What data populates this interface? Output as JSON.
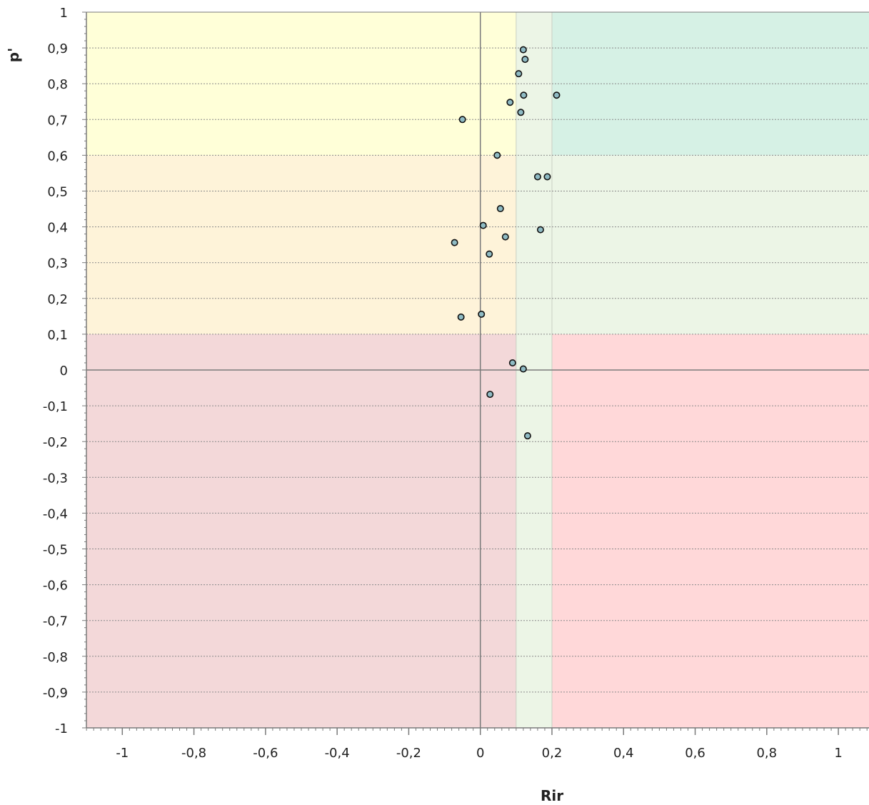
{
  "chart_data": {
    "type": "scatter",
    "title": "",
    "xlabel": "Rir",
    "ylabel": "p'",
    "xlim": [
      -1.1,
      1.1
    ],
    "ylim": [
      -1,
      1
    ],
    "x_ticks": [
      {
        "value": -1,
        "label": "-1"
      },
      {
        "value": -0.8,
        "label": "-0,8"
      },
      {
        "value": -0.6,
        "label": "-0,6"
      },
      {
        "value": -0.4,
        "label": "-0,4"
      },
      {
        "value": -0.2,
        "label": "-0,2"
      },
      {
        "value": 0,
        "label": "0"
      },
      {
        "value": 0.2,
        "label": "0,2"
      },
      {
        "value": 0.4,
        "label": "0,4"
      },
      {
        "value": 0.6,
        "label": "0,6"
      },
      {
        "value": 0.8,
        "label": "0,8"
      },
      {
        "value": 1,
        "label": "1"
      }
    ],
    "y_ticks": [
      {
        "value": 1,
        "label": "1"
      },
      {
        "value": 0.9,
        "label": "0,9"
      },
      {
        "value": 0.8,
        "label": "0,8"
      },
      {
        "value": 0.7,
        "label": "0,7"
      },
      {
        "value": 0.6,
        "label": "0,6"
      },
      {
        "value": 0.5,
        "label": "0,5"
      },
      {
        "value": 0.4,
        "label": "0,4"
      },
      {
        "value": 0.3,
        "label": "0,3"
      },
      {
        "value": 0.2,
        "label": "0,2"
      },
      {
        "value": 0.1,
        "label": "0,1"
      },
      {
        "value": 0,
        "label": "0"
      },
      {
        "value": -0.1,
        "label": "-0,1"
      },
      {
        "value": -0.2,
        "label": "-0,2"
      },
      {
        "value": -0.3,
        "label": "-0,3"
      },
      {
        "value": -0.4,
        "label": "-0,4"
      },
      {
        "value": -0.5,
        "label": "-0,5"
      },
      {
        "value": -0.6,
        "label": "-0,6"
      },
      {
        "value": -0.7,
        "label": "-0,7"
      },
      {
        "value": -0.8,
        "label": "-0,8"
      },
      {
        "value": -0.9,
        "label": "-0,9"
      },
      {
        "value": -1,
        "label": "-1"
      }
    ],
    "grid": "horizontal dotted",
    "background_regions": [
      {
        "x": [
          -1.1,
          0.1
        ],
        "y": [
          0.6,
          1.0
        ],
        "color": "#ffffd8"
      },
      {
        "x": [
          -1.1,
          0.1
        ],
        "y": [
          0.1,
          0.6
        ],
        "color": "#fef3d9"
      },
      {
        "x": [
          -1.1,
          0.1
        ],
        "y": [
          -1.0,
          0.1
        ],
        "color": "#f3d8d9"
      },
      {
        "x": [
          0.1,
          0.2
        ],
        "y": [
          0.1,
          1.0
        ],
        "color": "#ecf5e6"
      },
      {
        "x": [
          0.1,
          0.2
        ],
        "y": [
          -1.0,
          0.1
        ],
        "color": "#ecf5e6"
      },
      {
        "x": [
          0.2,
          1.1
        ],
        "y": [
          0.6,
          1.0
        ],
        "color": "#d6f1e5"
      },
      {
        "x": [
          0.2,
          1.1
        ],
        "y": [
          0.1,
          0.6
        ],
        "color": "#ecf5e6"
      },
      {
        "x": [
          0.2,
          1.1
        ],
        "y": [
          -1.0,
          0.1
        ],
        "color": "#ffd8d9"
      }
    ],
    "point_style": {
      "fill": "#8fbbc4",
      "stroke": "#111111"
    },
    "points": [
      {
        "x": 0.12,
        "y": 0.895
      },
      {
        "x": 0.125,
        "y": 0.868
      },
      {
        "x": 0.107,
        "y": 0.828
      },
      {
        "x": 0.121,
        "y": 0.768
      },
      {
        "x": 0.213,
        "y": 0.768
      },
      {
        "x": 0.083,
        "y": 0.748
      },
      {
        "x": 0.113,
        "y": 0.72
      },
      {
        "x": -0.05,
        "y": 0.7
      },
      {
        "x": 0.047,
        "y": 0.6
      },
      {
        "x": 0.16,
        "y": 0.54
      },
      {
        "x": 0.187,
        "y": 0.54
      },
      {
        "x": 0.056,
        "y": 0.451
      },
      {
        "x": 0.008,
        "y": 0.404
      },
      {
        "x": 0.168,
        "y": 0.392
      },
      {
        "x": 0.07,
        "y": 0.372
      },
      {
        "x": -0.072,
        "y": 0.356
      },
      {
        "x": 0.025,
        "y": 0.324
      },
      {
        "x": 0.003,
        "y": 0.156
      },
      {
        "x": -0.054,
        "y": 0.148
      },
      {
        "x": 0.09,
        "y": 0.02
      },
      {
        "x": 0.12,
        "y": 0.003
      },
      {
        "x": 0.027,
        "y": -0.068
      },
      {
        "x": 0.132,
        "y": -0.184
      }
    ]
  }
}
